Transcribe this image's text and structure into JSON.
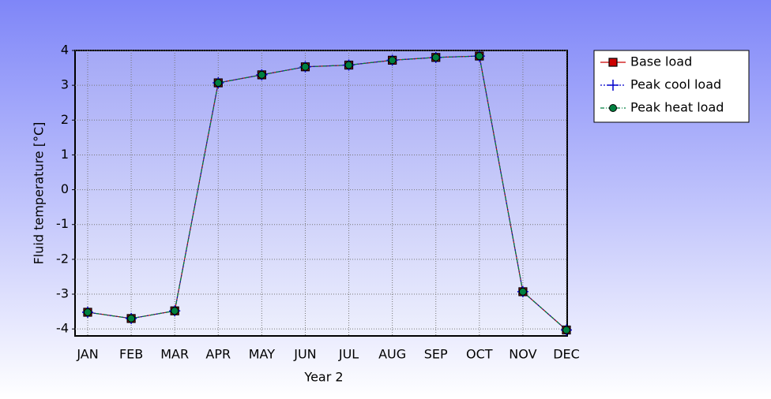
{
  "chart_data": {
    "type": "line",
    "x_label": "Year 2",
    "y_label": "Fluid temperature [°C]",
    "categories": [
      "JAN",
      "FEB",
      "MAR",
      "APR",
      "MAY",
      "JUN",
      "JUL",
      "AUG",
      "SEP",
      "OCT",
      "NOV",
      "DEC"
    ],
    "series": [
      {
        "name": "Base load",
        "color": "#cc0000",
        "marker": "square",
        "values": [
          -3.52,
          -3.7,
          -3.48,
          3.07,
          3.3,
          3.53,
          3.58,
          3.72,
          3.8,
          3.84,
          -2.93,
          -4.03
        ]
      },
      {
        "name": "Peak cool load",
        "color": "#0000cc",
        "marker": "plus",
        "values": [
          -3.52,
          -3.7,
          -3.48,
          3.07,
          3.3,
          3.53,
          3.58,
          3.72,
          3.8,
          3.84,
          -2.93,
          -4.03
        ]
      },
      {
        "name": "Peak heat load",
        "color": "#008040",
        "marker": "circle",
        "values": [
          -3.52,
          -3.7,
          -3.48,
          3.07,
          3.3,
          3.53,
          3.58,
          3.72,
          3.8,
          3.84,
          -2.93,
          -4.03
        ]
      }
    ],
    "ylim": [
      -4.2,
      4
    ],
    "yticks": [
      -4,
      -3,
      -2,
      -1,
      0,
      1,
      2,
      3,
      4
    ],
    "grid": true,
    "legend": "top-right"
  }
}
